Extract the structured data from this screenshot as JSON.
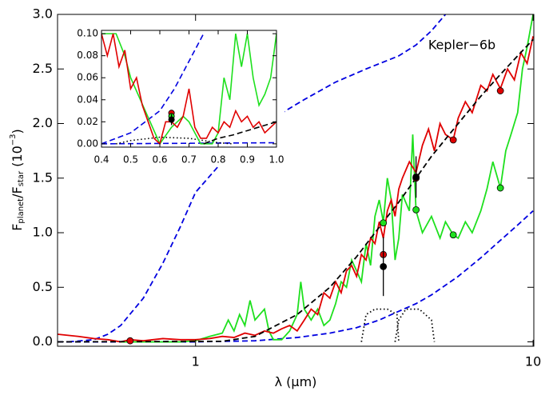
{
  "chart_data": [
    {
      "type": "line",
      "log_x": true,
      "annotation": "Kepler−6b",
      "x_label": [
        "λ (",
        "μ",
        "m)"
      ],
      "y_label": [
        "F",
        "planet",
        "/F",
        "star",
        "  (10",
        "−3",
        ")"
      ],
      "xlim": [
        0.39,
        10.05
      ],
      "ylim": [
        -0.04,
        3.0
      ],
      "xticks": [
        1,
        10
      ],
      "yticks": [
        {
          "value": 0,
          "label": "0.0"
        },
        0.5,
        {
          "value": 1,
          "label": "1.0"
        },
        1.5,
        {
          "value": 2,
          "label": "2.0"
        },
        2.5,
        {
          "value": 3,
          "label": "3.0"
        }
      ],
      "series": [
        {
          "color": "#0000e0",
          "style": "dashed",
          "x": [
            0.42,
            0.5,
            0.55,
            0.6,
            0.7,
            0.8,
            0.9,
            1,
            1.2,
            1.4,
            1.7,
            2.1,
            2.6,
            3.2,
            4,
            4.5,
            5,
            5.5
          ],
          "values": [
            0,
            0.02,
            0.07,
            0.15,
            0.4,
            0.72,
            1.05,
            1.37,
            1.65,
            1.85,
            2.05,
            2.22,
            2.38,
            2.5,
            2.62,
            2.72,
            2.85,
            3.0
          ]
        },
        {
          "color": "#0000e0",
          "style": "dashed",
          "x": [
            0.39,
            1,
            1.5,
            2,
            2.5,
            3,
            3.5,
            4,
            4.5,
            5,
            6,
            7,
            8,
            9,
            10
          ],
          "values": [
            0,
            0,
            0.01,
            0.04,
            0.08,
            0.13,
            0.2,
            0.28,
            0.35,
            0.43,
            0.6,
            0.77,
            0.93,
            1.07,
            1.2
          ]
        },
        {
          "color": "#000000",
          "style": "dotted",
          "x": [
            3.1,
            3.2,
            3.4,
            3.7,
            3.95,
            4.0
          ],
          "values": [
            0,
            0.25,
            0.3,
            0.3,
            0.25,
            0
          ]
        },
        {
          "color": "#000000",
          "style": "dotted",
          "x": [
            3.9,
            4.0,
            4.2,
            4.6,
            5.0,
            5.1
          ],
          "values": [
            0,
            0.2,
            0.3,
            0.3,
            0.2,
            0
          ]
        },
        {
          "color": "#1ee01e",
          "style": "solid",
          "x": [
            0.6,
            0.9,
            1.0,
            1.1,
            1.2,
            1.25,
            1.3,
            1.35,
            1.4,
            1.45,
            1.5,
            1.6,
            1.65,
            1.7,
            1.8,
            1.9,
            2.0,
            2.05,
            2.1,
            2.2,
            2.3,
            2.4,
            2.5,
            2.6,
            2.7,
            2.8,
            2.9,
            3.0,
            3.1,
            3.2,
            3.3,
            3.4,
            3.5,
            3.6,
            3.7,
            3.8,
            3.9,
            4.0,
            4.1,
            4.3,
            4.4,
            4.5,
            4.7,
            5.0,
            5.3,
            5.5,
            5.8,
            6.0,
            6.3,
            6.6,
            7.0,
            7.3,
            7.6,
            8.0,
            8.3,
            8.6,
            9.0,
            9.3,
            9.6,
            10
          ],
          "values": [
            0,
            0,
            0.01,
            0.05,
            0.08,
            0.2,
            0.1,
            0.25,
            0.15,
            0.38,
            0.2,
            0.3,
            0.1,
            0.02,
            0.02,
            0.1,
            0.25,
            0.55,
            0.3,
            0.2,
            0.3,
            0.15,
            0.2,
            0.35,
            0.55,
            0.5,
            0.75,
            0.65,
            0.55,
            0.9,
            0.7,
            1.15,
            1.3,
            1.1,
            1.5,
            1.3,
            0.75,
            0.95,
            1.35,
            1.2,
            1.9,
            1.2,
            1.0,
            1.15,
            0.95,
            1.1,
            0.98,
            0.95,
            1.1,
            1.0,
            1.2,
            1.4,
            1.65,
            1.41,
            1.75,
            1.9,
            2.1,
            2.5,
            2.7,
            3.0
          ]
        },
        {
          "color": "#e00000",
          "style": "solid",
          "x": [
            0.39,
            0.45,
            0.5,
            0.55,
            0.6,
            0.64,
            0.7,
            0.8,
            0.9,
            1.0,
            1.1,
            1.2,
            1.3,
            1.4,
            1.5,
            1.6,
            1.7,
            1.8,
            1.9,
            2.0,
            2.1,
            2.2,
            2.3,
            2.4,
            2.5,
            2.6,
            2.7,
            2.8,
            2.9,
            3.0,
            3.1,
            3.2,
            3.3,
            3.4,
            3.5,
            3.6,
            3.7,
            3.8,
            3.9,
            4.0,
            4.1,
            4.3,
            4.5,
            4.7,
            4.9,
            5.1,
            5.3,
            5.5,
            5.8,
            6.0,
            6.3,
            6.6,
            7.0,
            7.3,
            7.6,
            8.0,
            8.4,
            8.8,
            9.2,
            9.6,
            10
          ],
          "values": [
            0.07,
            0.05,
            0.03,
            0.02,
            0,
            0.02,
            0.01,
            0.03,
            0.02,
            0.02,
            0.03,
            0.05,
            0.04,
            0.08,
            0.06,
            0.1,
            0.08,
            0.12,
            0.15,
            0.1,
            0.2,
            0.3,
            0.25,
            0.45,
            0.4,
            0.55,
            0.45,
            0.65,
            0.7,
            0.6,
            0.8,
            0.75,
            0.95,
            0.9,
            1.1,
            0.95,
            1.2,
            1.3,
            1.15,
            1.4,
            1.5,
            1.65,
            1.55,
            1.8,
            1.95,
            1.75,
            2.0,
            1.9,
            1.85,
            2.05,
            2.2,
            2.1,
            2.35,
            2.3,
            2.45,
            2.32,
            2.5,
            2.4,
            2.65,
            2.55,
            2.8
          ]
        },
        {
          "color": "#000000",
          "style": "dashed",
          "x": [
            0.39,
            1.2,
            1.5,
            2,
            2.5,
            3,
            3.5,
            4,
            4.5,
            5,
            6,
            7,
            8,
            9,
            10
          ],
          "values": [
            0,
            0.005,
            0.05,
            0.25,
            0.5,
            0.78,
            1.05,
            1.28,
            1.5,
            1.7,
            2.0,
            2.25,
            2.45,
            2.62,
            2.77
          ]
        }
      ],
      "points": [
        {
          "color": "#1ee01e",
          "x": [
            3.6,
            4.5,
            5.8,
            8.0
          ],
          "values": [
            1.09,
            1.21,
            0.98,
            1.41
          ]
        },
        {
          "color": "#e00000",
          "x": [
            0.64,
            3.6,
            4.5,
            5.8,
            8.0
          ],
          "values": [
            0.01,
            0.8,
            1.5,
            1.85,
            2.3
          ]
        },
        {
          "color": "#000000",
          "x": [
            3.6,
            4.5
          ],
          "values": [
            0.69,
            1.51
          ],
          "errors": [
            0.27,
            0.19
          ]
        }
      ]
    },
    {
      "type": "line",
      "log_x": false,
      "xlim": [
        0.4,
        1.0
      ],
      "ylim": [
        -0.003,
        0.103
      ],
      "xticks": [
        0.4,
        0.5,
        0.6,
        0.7,
        0.8,
        0.9,
        {
          "value": 1,
          "label": "1.0"
        }
      ],
      "yticks": [
        {
          "value": 0,
          "label": "0.00"
        },
        0.02,
        0.04,
        0.06,
        0.08,
        {
          "value": 0.1,
          "label": "0.10"
        }
      ],
      "series": [
        {
          "color": "#0000e0",
          "style": "dashed",
          "x": [
            0.4,
            0.5,
            0.6,
            0.65,
            0.7,
            0.75
          ],
          "values": [
            0,
            0.01,
            0.03,
            0.05,
            0.075,
            0.1
          ]
        },
        {
          "color": "#0000e0",
          "style": "dashed",
          "x": [
            0.4,
            1.0
          ],
          "values": [
            0,
            0.001
          ]
        },
        {
          "color": "#000000",
          "style": "dotted",
          "x": [
            0.45,
            0.5,
            0.6,
            0.7,
            0.8,
            0.85
          ],
          "values": [
            0,
            0.003,
            0.006,
            0.005,
            0.001,
            0
          ]
        },
        {
          "color": "#1ee01e",
          "style": "solid",
          "x": [
            0.4,
            0.45,
            0.48,
            0.5,
            0.55,
            0.6,
            0.64,
            0.68,
            0.7,
            0.74,
            0.78,
            0.8,
            0.82,
            0.84,
            0.86,
            0.88,
            0.9,
            0.92,
            0.94,
            0.96,
            0.98,
            1.0
          ],
          "values": [
            0.1,
            0.1,
            0.08,
            0.06,
            0.03,
            0,
            0.015,
            0.025,
            0.02,
            0,
            0,
            0.01,
            0.06,
            0.04,
            0.1,
            0.07,
            0.1,
            0.06,
            0.035,
            0.045,
            0.06,
            0.1
          ]
        },
        {
          "color": "#e00000",
          "style": "solid",
          "x": [
            0.4,
            0.42,
            0.44,
            0.46,
            0.48,
            0.5,
            0.52,
            0.54,
            0.56,
            0.58,
            0.6,
            0.62,
            0.64,
            0.66,
            0.68,
            0.7,
            0.72,
            0.74,
            0.76,
            0.78,
            0.8,
            0.82,
            0.84,
            0.86,
            0.88,
            0.9,
            0.92,
            0.94,
            0.96,
            0.98,
            1.0
          ],
          "values": [
            0.1,
            0.08,
            0.1,
            0.07,
            0.085,
            0.05,
            0.06,
            0.035,
            0.02,
            0.005,
            0,
            0.02,
            0.02,
            0.015,
            0.025,
            0.05,
            0.015,
            0.005,
            0.005,
            0.015,
            0.01,
            0.02,
            0.015,
            0.03,
            0.02,
            0.025,
            0.015,
            0.02,
            0.01,
            0.015,
            0.02
          ]
        },
        {
          "color": "#000000",
          "style": "dashed",
          "x": [
            0.75,
            0.8,
            0.85,
            0.9,
            0.95,
            1.0
          ],
          "values": [
            0,
            0.005,
            0.008,
            0.012,
            0.016,
            0.02
          ]
        }
      ],
      "points": [
        {
          "color": "#e00000",
          "x": [
            0.64
          ],
          "values": [
            0.028
          ]
        },
        {
          "color": "#1ee01e",
          "x": [
            0.64
          ],
          "values": [
            0.025
          ]
        },
        {
          "color": "#000000",
          "x": [
            0.64
          ],
          "values": [
            0.022
          ],
          "errors": [
            0.005
          ]
        }
      ]
    }
  ]
}
